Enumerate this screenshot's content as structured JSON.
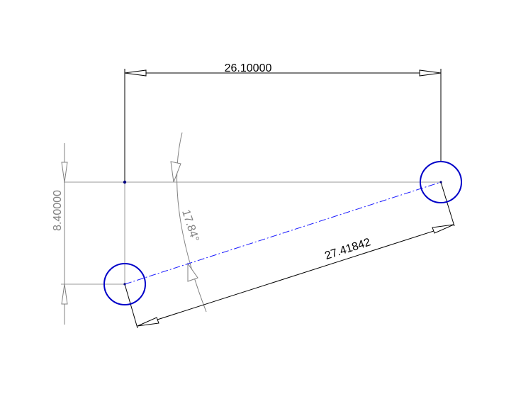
{
  "sketch": {
    "horizontal_dimension": "26.10000",
    "vertical_dimension": "8.40000",
    "aligned_dimension": "27.41842",
    "angle_dimension": "17.84°"
  },
  "colors": {
    "background": "#ffffff",
    "dimension_black": "#000000",
    "dimension_gray": "#808080",
    "construction_line": "#9a9a9a",
    "circle_blue": "#0000c8",
    "centerline_blue": "#1a1aff",
    "point_blue": "#000080"
  }
}
